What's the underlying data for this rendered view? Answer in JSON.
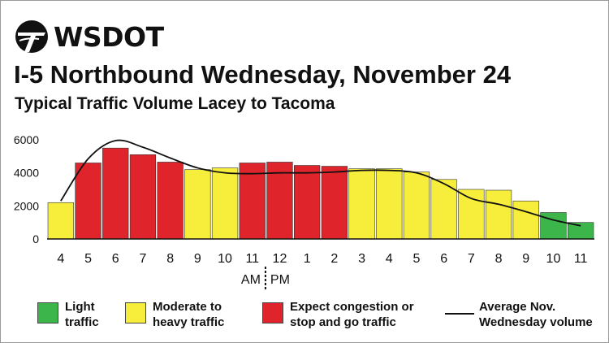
{
  "header": {
    "logo_text": "WSDOT",
    "title": "I-5 Northbound Wednesday, November 24",
    "subtitle": "Typical Traffic Volume Lacey to Tacoma"
  },
  "colors": {
    "light": "#3cb54a",
    "moderate": "#f6ee3a",
    "congestion": "#e0242b",
    "line": "#111111"
  },
  "chart_data": {
    "type": "bar",
    "categories": [
      "4",
      "5",
      "6",
      "7",
      "8",
      "9",
      "10",
      "11",
      "12",
      "1",
      "2",
      "3",
      "4",
      "5",
      "6",
      "7",
      "8",
      "9",
      "10",
      "11"
    ],
    "values": [
      2200,
      4600,
      5500,
      5100,
      4650,
      4200,
      4300,
      4600,
      4650,
      4450,
      4400,
      4250,
      4250,
      4050,
      3600,
      3000,
      2950,
      2300,
      1600,
      1000
    ],
    "levels": [
      "moderate",
      "congestion",
      "congestion",
      "congestion",
      "congestion",
      "moderate",
      "moderate",
      "congestion",
      "congestion",
      "congestion",
      "congestion",
      "moderate",
      "moderate",
      "moderate",
      "moderate",
      "moderate",
      "moderate",
      "moderate",
      "light",
      "light"
    ],
    "series": [
      {
        "name": "Average Nov. Wednesday volume",
        "type": "line",
        "values": [
          2300,
          4850,
          5950,
          5550,
          4900,
          4300,
          4000,
          3950,
          4000,
          4000,
          4050,
          4150,
          4150,
          4000,
          3350,
          2450,
          2100,
          1650,
          1150,
          800
        ]
      }
    ],
    "yticks": [
      "0",
      "2000",
      "4000",
      "6000"
    ],
    "ylim": [
      0,
      6000
    ],
    "am_label": "AM",
    "pm_label": "PM",
    "grid": false
  },
  "legend": [
    {
      "key": "light",
      "label": "Light traffic"
    },
    {
      "key": "moderate",
      "label": "Moderate to heavy traffic"
    },
    {
      "key": "congestion",
      "label": "Expect congestion or stop and go traffic"
    },
    {
      "key": "line",
      "label": "Average Nov. Wednesday volume"
    }
  ]
}
